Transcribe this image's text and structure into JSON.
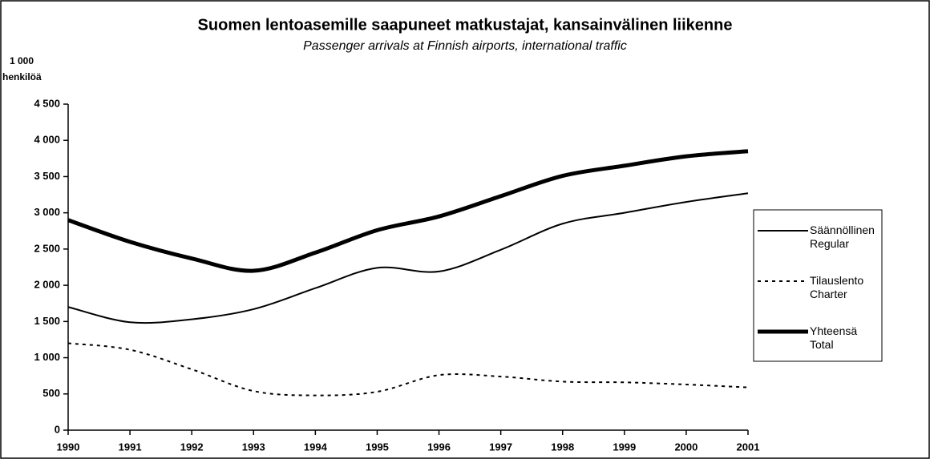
{
  "chart_data": {
    "type": "line",
    "title": "Suomen lentoasemille saapuneet matkustajat, kansainvälinen liikenne",
    "subtitle": "Passenger arrivals at Finnish airports, international traffic",
    "ylabel": [
      "1 000",
      "henkilöä"
    ],
    "categories": [
      "1990",
      "1991",
      "1992",
      "1993",
      "1994",
      "1995",
      "1996",
      "1997",
      "1998",
      "1999",
      "2000",
      "2001"
    ],
    "series": [
      {
        "name": "Säännöllinen Regular",
        "color": "#000000",
        "style": "solid",
        "width": 2,
        "values": [
          1700,
          1490,
          1530,
          1670,
          1960,
          2240,
          2190,
          2490,
          2850,
          3000,
          3150,
          3270
        ]
      },
      {
        "name": "Tilauslento Charter",
        "color": "#000000",
        "style": "dotted",
        "width": 2,
        "values": [
          1200,
          1110,
          840,
          540,
          480,
          530,
          760,
          740,
          670,
          660,
          630,
          590
        ]
      },
      {
        "name": "Yhteensä Total",
        "color": "#000000",
        "style": "solid",
        "width": 5,
        "values": [
          2900,
          2600,
          2370,
          2200,
          2450,
          2760,
          2950,
          3230,
          3510,
          3650,
          3780,
          3850
        ]
      }
    ],
    "ylim": [
      0,
      4500
    ],
    "yticks": [
      0,
      500,
      {
        "value": 1000,
        "label": "1 000"
      },
      {
        "value": 1500,
        "label": "1 500"
      },
      {
        "value": 2000,
        "label": "2 000"
      },
      {
        "value": 2500,
        "label": "2 500"
      },
      {
        "value": 3000,
        "label": "3 000"
      },
      {
        "value": 3500,
        "label": "3 500"
      },
      {
        "value": 4000,
        "label": "4 000"
      },
      {
        "value": 4500,
        "label": "4 500"
      }
    ],
    "legend": "right"
  }
}
